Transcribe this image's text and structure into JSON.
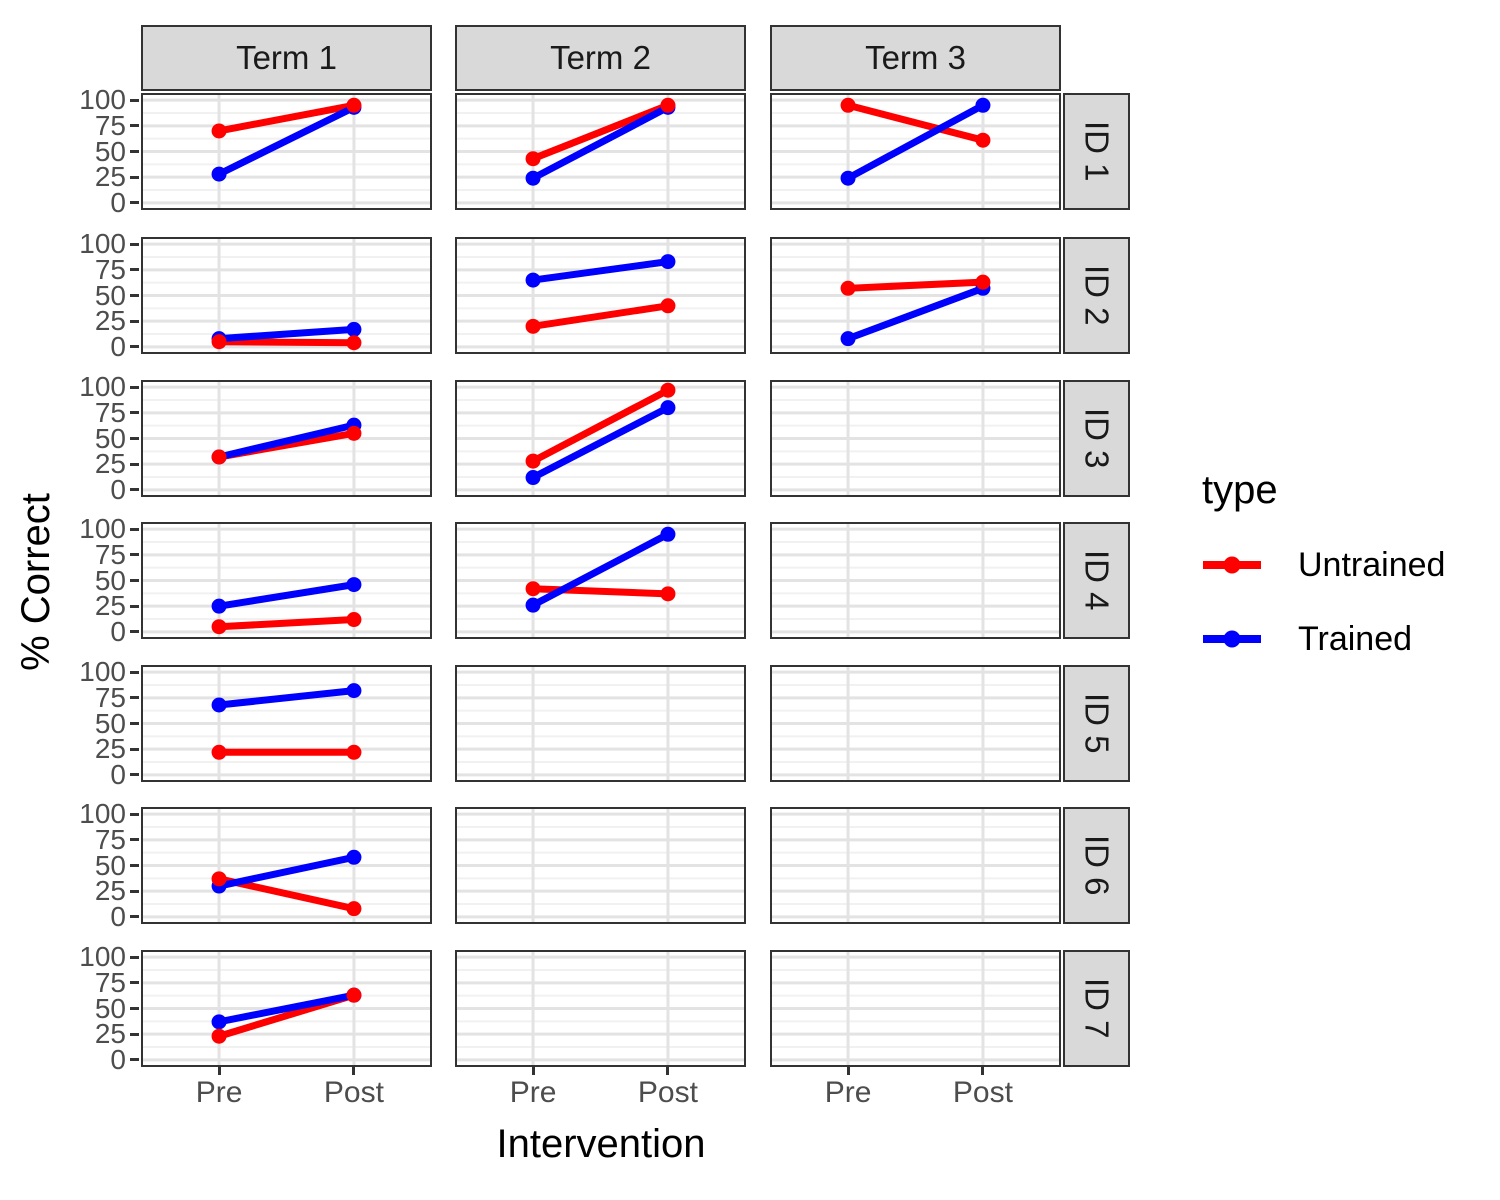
{
  "chart_data": {
    "type": "line",
    "title": "",
    "xlabel": "Intervention",
    "ylabel": "% Correct",
    "x_categories": [
      "Pre",
      "Post"
    ],
    "ylim": [
      0,
      100
    ],
    "y_ticks": [
      0,
      25,
      50,
      75,
      100
    ],
    "grid": true,
    "facet_columns": [
      "Term 1",
      "Term 2",
      "Term 3"
    ],
    "facet_rows": [
      "ID 1",
      "ID 2",
      "ID 3",
      "ID 4",
      "ID 5",
      "ID 6",
      "ID 7"
    ],
    "legend": {
      "title": "type",
      "position": "right",
      "items": [
        {
          "label": "Untrained",
          "color": "#FF0000"
        },
        {
          "label": "Trained",
          "color": "#0000FF"
        }
      ]
    },
    "panels": [
      {
        "row": "ID 1",
        "col": "Term 1",
        "series": [
          {
            "name": "Untrained",
            "values": [
              70,
              95
            ]
          },
          {
            "name": "Trained",
            "values": [
              28,
              93
            ]
          }
        ]
      },
      {
        "row": "ID 1",
        "col": "Term 2",
        "series": [
          {
            "name": "Untrained",
            "values": [
              43,
              95
            ]
          },
          {
            "name": "Trained",
            "values": [
              24,
              93
            ]
          }
        ]
      },
      {
        "row": "ID 1",
        "col": "Term 3",
        "series": [
          {
            "name": "Untrained",
            "values": [
              95,
              61
            ]
          },
          {
            "name": "Trained",
            "values": [
              24,
              95
            ]
          }
        ]
      },
      {
        "row": "ID 2",
        "col": "Term 1",
        "series": [
          {
            "name": "Untrained",
            "values": [
              5,
              4
            ]
          },
          {
            "name": "Trained",
            "values": [
              8,
              17
            ]
          }
        ]
      },
      {
        "row": "ID 2",
        "col": "Term 2",
        "series": [
          {
            "name": "Untrained",
            "values": [
              20,
              40
            ]
          },
          {
            "name": "Trained",
            "values": [
              65,
              83
            ]
          }
        ]
      },
      {
        "row": "ID 2",
        "col": "Term 3",
        "series": [
          {
            "name": "Untrained",
            "values": [
              57,
              63
            ]
          },
          {
            "name": "Trained",
            "values": [
              8,
              57
            ]
          }
        ]
      },
      {
        "row": "ID 3",
        "col": "Term 1",
        "series": [
          {
            "name": "Untrained",
            "values": [
              32,
              55
            ]
          },
          {
            "name": "Trained",
            "values": [
              32,
              63
            ]
          }
        ]
      },
      {
        "row": "ID 3",
        "col": "Term 2",
        "series": [
          {
            "name": "Untrained",
            "values": [
              28,
              97
            ]
          },
          {
            "name": "Trained",
            "values": [
              12,
              80
            ]
          }
        ]
      },
      {
        "row": "ID 4",
        "col": "Term 1",
        "series": [
          {
            "name": "Untrained",
            "values": [
              5,
              12
            ]
          },
          {
            "name": "Trained",
            "values": [
              25,
              46
            ]
          }
        ]
      },
      {
        "row": "ID 4",
        "col": "Term 2",
        "series": [
          {
            "name": "Untrained",
            "values": [
              42,
              37
            ]
          },
          {
            "name": "Trained",
            "values": [
              26,
              95
            ]
          }
        ]
      },
      {
        "row": "ID 5",
        "col": "Term 1",
        "series": [
          {
            "name": "Untrained",
            "values": [
              22,
              22
            ]
          },
          {
            "name": "Trained",
            "values": [
              68,
              82
            ]
          }
        ]
      },
      {
        "row": "ID 6",
        "col": "Term 1",
        "series": [
          {
            "name": "Untrained",
            "values": [
              37,
              8
            ]
          },
          {
            "name": "Trained",
            "values": [
              30,
              58
            ]
          }
        ]
      },
      {
        "row": "ID 7",
        "col": "Term 1",
        "series": [
          {
            "name": "Untrained",
            "values": [
              23,
              63
            ]
          },
          {
            "name": "Trained",
            "values": [
              37,
              63
            ]
          }
        ]
      }
    ]
  },
  "colors": {
    "strip_bg": "#D9D9D9",
    "panel_border": "#333333",
    "grid_major": "#E3E3E3",
    "grid_minor": "#F1F1F1",
    "tick_label": "#4D4D4D"
  }
}
